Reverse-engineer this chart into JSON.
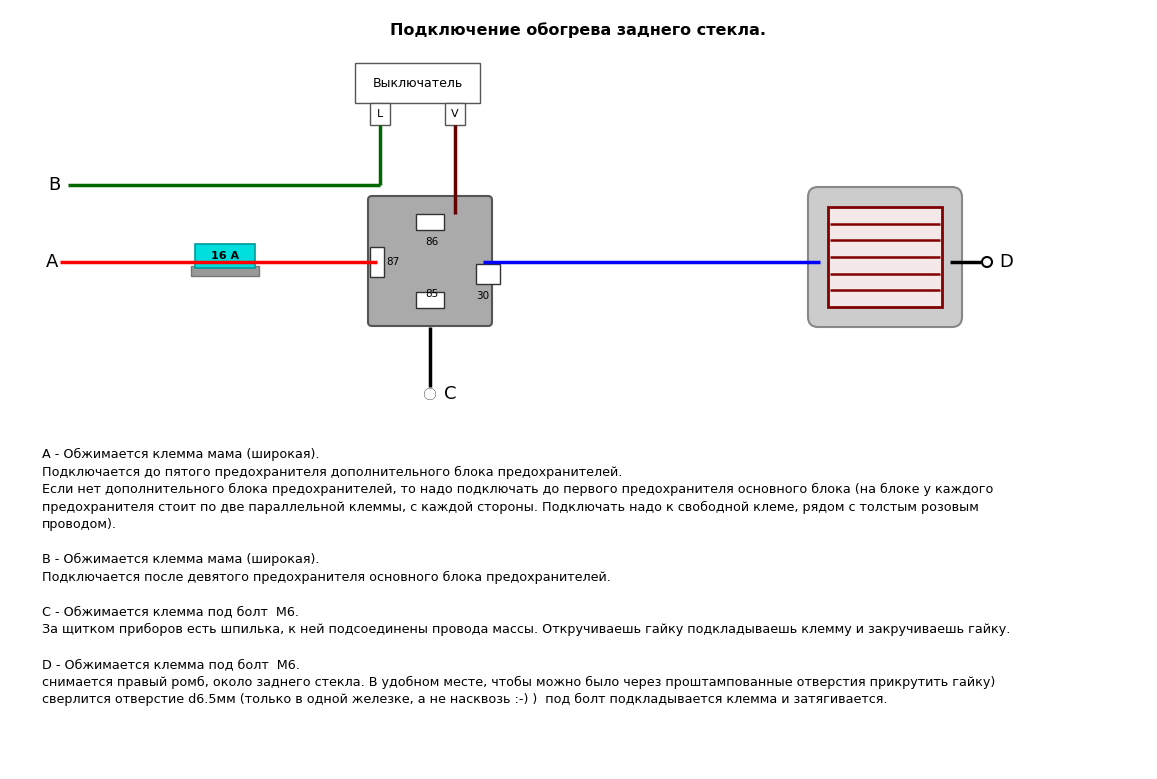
{
  "title": "Подключение обогрева заднего стекла.",
  "wire_colors": {
    "red": "#ff0000",
    "green": "#006600",
    "blue": "#0000ff",
    "dark_red": "#660000",
    "black": "#000000"
  },
  "switch_label": "Выключатель",
  "fuse_label": "16 А",
  "text_block": [
    "А - Обжимается клемма мама (широкая).",
    "Подключается до пятого предохранителя дополнительного блока предохранителей.",
    "Если нет дополнительного блока предохранителей, то надо подключать до первого предохранителя основного блока (на блоке у каждого",
    "предохранителя стоит по две параллельной клеммы, с каждой стороны. Подключать надо к свободной клеме, рядом с толстым розовым",
    "проводом).",
    "",
    "В - Обжимается клемма мама (широкая).",
    "Подключается после девятого предохранителя основного блока предохранителей.",
    "",
    "С - Обжимается клемма под болт  М6.",
    "За щитком приборов есть шпилька, к ней подсоединены провода массы. Откручиваешь гайку подкладываешь клемму и закручиваешь гайку.",
    "",
    "D - Обжимается клемма под болт  М6.",
    "снимается правый ромб, около заднего стекла. В удобном месте, чтобы можно было через проштампованные отверстия прикрутить гайку)",
    "сверлится отверстие d6.5мм (только в одной железке, а не насквозь :-) )  под болт подкладывается клемма и затягивается."
  ]
}
